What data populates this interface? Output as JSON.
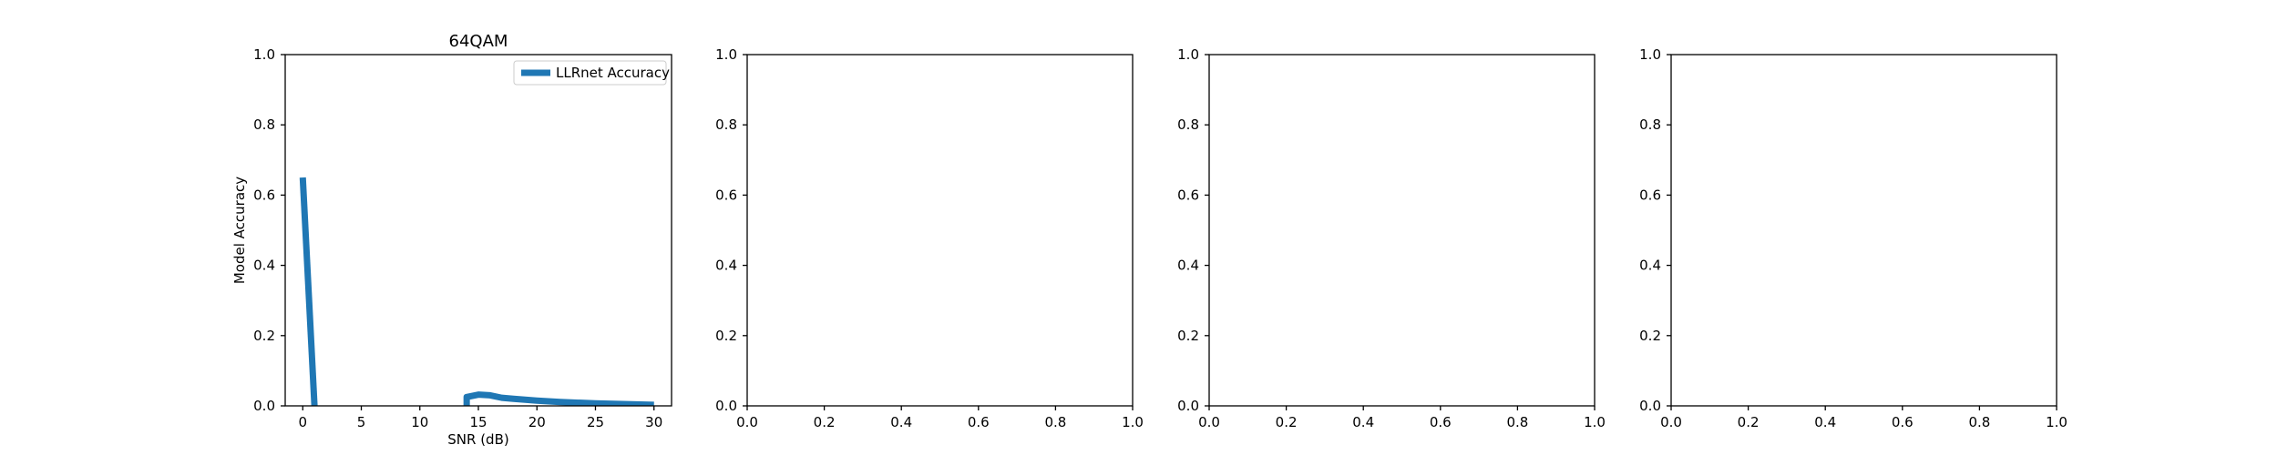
{
  "chart_data": [
    {
      "type": "line",
      "title": "64QAM",
      "xlabel": "SNR (dB)",
      "ylabel": "Model Accuracy",
      "xlim": [
        -1.5,
        31.5
      ],
      "ylim": [
        0,
        1
      ],
      "xticks": [
        0,
        5,
        10,
        15,
        20,
        25,
        30
      ],
      "xtick_labels": [
        "0",
        "5",
        "10",
        "15",
        "20",
        "25",
        "30"
      ],
      "yticks": [
        0,
        0.2,
        0.4,
        0.6,
        0.8,
        1.0
      ],
      "ytick_labels": [
        "0.0",
        "0.2",
        "0.4",
        "0.6",
        "0.8",
        "1.0"
      ],
      "grid": false,
      "legend_position": "top-right",
      "series": [
        {
          "name": "LLRnet Accuracy",
          "color": "#1f77b4",
          "segments": [
            {
              "x": [
                0,
                1
              ],
              "y": [
                0.65,
                0.0
              ]
            },
            {
              "x": [
                14,
                14,
                15,
                16,
                17,
                18,
                20,
                22,
                25,
                30
              ],
              "y": [
                0.0,
                0.025,
                0.032,
                0.03,
                0.023,
                0.02,
                0.015,
                0.011,
                0.007,
                0.003
              ]
            }
          ]
        }
      ]
    },
    {
      "type": "line",
      "title": "",
      "xlabel": "",
      "ylabel": "",
      "xlim": [
        0,
        1
      ],
      "ylim": [
        0,
        1
      ],
      "xticks": [
        0,
        0.2,
        0.4,
        0.6,
        0.8,
        1.0
      ],
      "xtick_labels": [
        "0.0",
        "0.2",
        "0.4",
        "0.6",
        "0.8",
        "1.0"
      ],
      "yticks": [
        0,
        0.2,
        0.4,
        0.6,
        0.8,
        1.0
      ],
      "ytick_labels": [
        "0.0",
        "0.2",
        "0.4",
        "0.6",
        "0.8",
        "1.0"
      ],
      "grid": false,
      "series": []
    },
    {
      "type": "line",
      "title": "",
      "xlabel": "",
      "ylabel": "",
      "xlim": [
        0,
        1
      ],
      "ylim": [
        0,
        1
      ],
      "xticks": [
        0,
        0.2,
        0.4,
        0.6,
        0.8,
        1.0
      ],
      "xtick_labels": [
        "0.0",
        "0.2",
        "0.4",
        "0.6",
        "0.8",
        "1.0"
      ],
      "yticks": [
        0,
        0.2,
        0.4,
        0.6,
        0.8,
        1.0
      ],
      "ytick_labels": [
        "0.0",
        "0.2",
        "0.4",
        "0.6",
        "0.8",
        "1.0"
      ],
      "grid": false,
      "series": []
    },
    {
      "type": "line",
      "title": "",
      "xlabel": "",
      "ylabel": "",
      "xlim": [
        0,
        1
      ],
      "ylim": [
        0,
        1
      ],
      "xticks": [
        0,
        0.2,
        0.4,
        0.6,
        0.8,
        1.0
      ],
      "xtick_labels": [
        "0.0",
        "0.2",
        "0.4",
        "0.6",
        "0.8",
        "1.0"
      ],
      "yticks": [
        0,
        0.2,
        0.4,
        0.6,
        0.8,
        1.0
      ],
      "ytick_labels": [
        "0.0",
        "0.2",
        "0.4",
        "0.6",
        "0.8",
        "1.0"
      ],
      "grid": false,
      "series": []
    }
  ]
}
